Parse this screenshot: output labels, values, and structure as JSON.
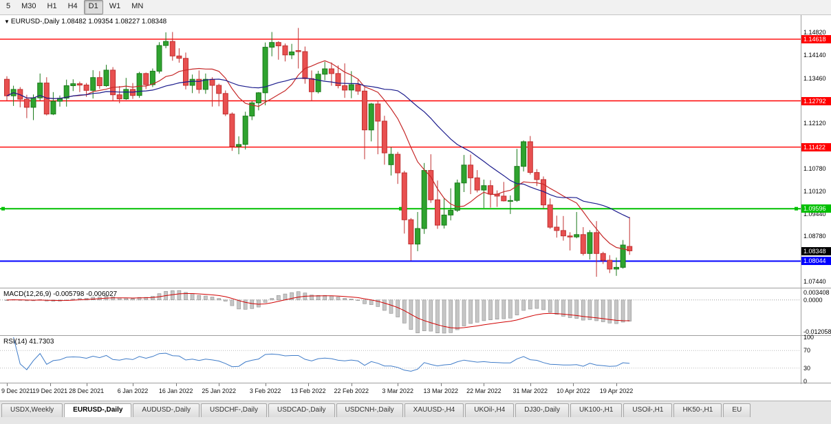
{
  "toolbar": {
    "timeframes": [
      {
        "label": "5",
        "active": false
      },
      {
        "label": "M30",
        "active": false
      },
      {
        "label": "H1",
        "active": false
      },
      {
        "label": "H4",
        "active": false
      },
      {
        "label": "D1",
        "active": true
      },
      {
        "label": "W1",
        "active": false
      },
      {
        "label": "MN",
        "active": false
      }
    ]
  },
  "chart_title": {
    "icon": "▼",
    "symbol": "EURUSD-,Daily",
    "ohlc": "1.08482 1.09354 1.08227 1.08348"
  },
  "chart_data": {
    "type": "candlestick",
    "symbol": "EURUSD-",
    "timeframe": "Daily",
    "colors": {
      "bull_fill": "#2FA32F",
      "bull_border": "#1B7A1B",
      "bear_fill": "#E85050",
      "bear_border": "#C03030"
    },
    "y_axis": {
      "top_price": 1.1482,
      "bottom_price": 1.0744,
      "labels": [
        {
          "text": "1.14820",
          "price": 1.1482
        },
        {
          "text": "1.14140",
          "price": 1.1414
        },
        {
          "text": "1.13460",
          "price": 1.1346
        },
        {
          "text": "1.12120",
          "price": 1.1212
        },
        {
          "text": "1.10780",
          "price": 1.1078
        },
        {
          "text": "1.10120",
          "price": 1.1012
        },
        {
          "text": "1.09440",
          "price": 1.0944
        },
        {
          "text": "1.08780",
          "price": 1.0878
        },
        {
          "text": "1.07440",
          "price": 1.0744
        }
      ]
    },
    "levels": [
      {
        "price": 1.14618,
        "label": "1.14618",
        "color": "#FF0000",
        "width": 1.4,
        "selected": false
      },
      {
        "price": 1.12792,
        "label": "1.12792",
        "color": "#FF0000",
        "width": 1.4,
        "selected": false
      },
      {
        "price": 1.11422,
        "label": "1.11422",
        "color": "#FF0000",
        "width": 1.4,
        "selected": false
      },
      {
        "price": 1.09596,
        "label": "1.09596",
        "color": "#00C000",
        "width": 2,
        "selected": true
      },
      {
        "price": 1.08044,
        "label": "1.08044",
        "color": "#0000FF",
        "width": 2,
        "selected": false
      }
    ],
    "current_price": {
      "price": 1.08348,
      "label": "1.08348",
      "color": "#000000"
    },
    "moving_averages": [
      {
        "period": 10,
        "color": "#C62828"
      },
      {
        "period": 24,
        "color": "#1A1A8C"
      }
    ],
    "x_axis_labels": [
      {
        "text": "9 Dec 2021",
        "i": 0
      },
      {
        "text": "19 Dec 2021",
        "i": 6.5
      },
      {
        "text": "28 Dec 2021",
        "i": 12
      },
      {
        "text": "6 Jan 2022",
        "i": 19
      },
      {
        "text": "16 Jan 2022",
        "i": 25.5
      },
      {
        "text": "25 Jan 2022",
        "i": 32
      },
      {
        "text": "3 Feb 2022",
        "i": 39
      },
      {
        "text": "13 Feb 2022",
        "i": 45.5
      },
      {
        "text": "22 Feb 2022",
        "i": 52
      },
      {
        "text": "3 Mar 2022",
        "i": 59
      },
      {
        "text": "13 Mar 2022",
        "i": 65.5
      },
      {
        "text": "22 Mar 2022",
        "i": 72
      },
      {
        "text": "31 Mar 2022",
        "i": 79
      },
      {
        "text": "10 Apr 2022",
        "i": 85.5
      },
      {
        "text": "19 Apr 2022",
        "i": 92
      }
    ],
    "ohlc": [
      [
        1.1343,
        1.1352,
        1.128,
        1.1294
      ],
      [
        1.1294,
        1.1324,
        1.1264,
        1.1313
      ],
      [
        1.1313,
        1.132,
        1.126,
        1.1284
      ],
      [
        1.1284,
        1.1297,
        1.1228,
        1.126
      ],
      [
        1.126,
        1.1298,
        1.1222,
        1.1288
      ],
      [
        1.1288,
        1.136,
        1.128,
        1.1332
      ],
      [
        1.1332,
        1.1349,
        1.1236,
        1.124
      ],
      [
        1.124,
        1.1305,
        1.1237,
        1.1278
      ],
      [
        1.1278,
        1.1295,
        1.1262,
        1.1287
      ],
      [
        1.1287,
        1.1342,
        1.1262,
        1.1324
      ],
      [
        1.1324,
        1.1343,
        1.1308,
        1.133
      ],
      [
        1.133,
        1.1336,
        1.1305,
        1.1326
      ],
      [
        1.1326,
        1.1332,
        1.1291,
        1.131
      ],
      [
        1.131,
        1.137,
        1.1286,
        1.1348
      ],
      [
        1.1348,
        1.1367,
        1.1315,
        1.1324
      ],
      [
        1.1324,
        1.1386,
        1.1321,
        1.137
      ],
      [
        1.137,
        1.1379,
        1.1279,
        1.1297
      ],
      [
        1.1297,
        1.1323,
        1.1272,
        1.1285
      ],
      [
        1.1285,
        1.1347,
        1.1282,
        1.1313
      ],
      [
        1.1313,
        1.1332,
        1.1285,
        1.1295
      ],
      [
        1.1295,
        1.1365,
        1.1288,
        1.136
      ],
      [
        1.136,
        1.1363,
        1.1314,
        1.1327
      ],
      [
        1.1327,
        1.1375,
        1.132,
        1.1367
      ],
      [
        1.1367,
        1.1453,
        1.136,
        1.1443
      ],
      [
        1.1443,
        1.1482,
        1.1435,
        1.1455
      ],
      [
        1.1455,
        1.1483,
        1.1398,
        1.1412
      ],
      [
        1.1412,
        1.1435,
        1.1392,
        1.1405
      ],
      [
        1.1405,
        1.1422,
        1.1313,
        1.1325
      ],
      [
        1.1325,
        1.1357,
        1.1302,
        1.1343
      ],
      [
        1.1343,
        1.1369,
        1.1301,
        1.1313
      ],
      [
        1.1313,
        1.136,
        1.13,
        1.1343
      ],
      [
        1.1343,
        1.1349,
        1.1262,
        1.1325
      ],
      [
        1.1325,
        1.133,
        1.1263,
        1.1301
      ],
      [
        1.1301,
        1.131,
        1.1234,
        1.124
      ],
      [
        1.124,
        1.1245,
        1.1131,
        1.1144
      ],
      [
        1.1144,
        1.1174,
        1.1121,
        1.115
      ],
      [
        1.115,
        1.1247,
        1.1135,
        1.1234
      ],
      [
        1.1234,
        1.1279,
        1.1222,
        1.1273
      ],
      [
        1.1273,
        1.1305,
        1.1251,
        1.1303
      ],
      [
        1.1303,
        1.1452,
        1.1266,
        1.1438
      ],
      [
        1.1438,
        1.1483,
        1.1411,
        1.1452
      ],
      [
        1.1452,
        1.1456,
        1.1401,
        1.1442
      ],
      [
        1.1442,
        1.1449,
        1.1396,
        1.1415
      ],
      [
        1.1415,
        1.1448,
        1.1403,
        1.1424
      ],
      [
        1.1428,
        1.1495,
        1.1375,
        1.1425
      ],
      [
        1.1425,
        1.144,
        1.133,
        1.1345
      ],
      [
        1.1345,
        1.1369,
        1.1278,
        1.1306
      ],
      [
        1.1306,
        1.1368,
        1.1301,
        1.1358
      ],
      [
        1.1358,
        1.1395,
        1.134,
        1.1374
      ],
      [
        1.1374,
        1.1393,
        1.1324,
        1.136
      ],
      [
        1.136,
        1.1384,
        1.1316,
        1.1324
      ],
      [
        1.1324,
        1.139,
        1.1288,
        1.1311
      ],
      [
        1.1311,
        1.1367,
        1.1287,
        1.1327
      ],
      [
        1.1327,
        1.1342,
        1.1297,
        1.1308
      ],
      [
        1.1308,
        1.1318,
        1.1106,
        1.1193
      ],
      [
        1.1193,
        1.1273,
        1.1159,
        1.127
      ],
      [
        1.127,
        1.1278,
        1.1121,
        1.1219
      ],
      [
        1.1219,
        1.1235,
        1.109,
        1.1125
      ],
      [
        1.109,
        1.1142,
        1.1058,
        1.1121
      ],
      [
        1.1121,
        1.1128,
        1.1033,
        1.1066
      ],
      [
        1.1066,
        1.1072,
        1.0886,
        1.0927
      ],
      [
        1.0927,
        1.0932,
        1.0806,
        1.0855
      ],
      [
        1.0855,
        1.095,
        1.0834,
        1.0901
      ],
      [
        1.0901,
        1.1095,
        1.0885,
        1.1073
      ],
      [
        1.1073,
        1.1121,
        1.0977,
        1.0986
      ],
      [
        1.0986,
        1.1043,
        1.09,
        1.0911
      ],
      [
        1.0911,
        1.0991,
        1.0901,
        1.0941
      ],
      [
        1.0941,
        1.102,
        1.0925,
        1.0955
      ],
      [
        1.0955,
        1.1046,
        1.095,
        1.1036
      ],
      [
        1.1036,
        1.1119,
        1.1009,
        1.1089
      ],
      [
        1.1089,
        1.112,
        1.1003,
        1.1051
      ],
      [
        1.1051,
        1.1074,
        1.1008,
        1.1015
      ],
      [
        1.1015,
        1.1046,
        1.0962,
        1.1028
      ],
      [
        1.1028,
        1.1044,
        1.0963,
        1.1003
      ],
      [
        1.1003,
        1.1014,
        1.0965,
        1.0997
      ],
      [
        1.0997,
        1.1039,
        1.0981,
        1.0983
      ],
      [
        1.0983,
        1.0999,
        1.0944,
        1.0984
      ],
      [
        1.0984,
        1.1137,
        1.098,
        1.1085
      ],
      [
        1.1085,
        1.1162,
        1.107,
        1.1158
      ],
      [
        1.1158,
        1.1175,
        1.1061,
        1.1067
      ],
      [
        1.1067,
        1.1077,
        1.1027,
        1.1046
      ],
      [
        1.1046,
        1.1055,
        1.096,
        1.0971
      ],
      [
        1.0971,
        1.099,
        1.09,
        1.0905
      ],
      [
        1.0905,
        1.0939,
        1.0874,
        1.0895
      ],
      [
        1.0895,
        1.0938,
        1.0865,
        1.0879
      ],
      [
        1.0879,
        1.089,
        1.0836,
        1.0876
      ],
      [
        1.0876,
        1.095,
        1.0872,
        1.0883
      ],
      [
        1.0883,
        1.0905,
        1.0821,
        1.0827
      ],
      [
        1.0827,
        1.0896,
        1.0809,
        1.0889
      ],
      [
        1.0889,
        1.0923,
        1.0758,
        1.0827
      ],
      [
        1.0827,
        1.0832,
        1.0796,
        1.0807
      ],
      [
        1.0807,
        1.0822,
        1.0769,
        1.0781
      ],
      [
        1.0781,
        1.0815,
        1.0761,
        1.0786
      ],
      [
        1.0786,
        1.0867,
        1.0782,
        1.0852
      ],
      [
        1.0848,
        1.0935,
        1.0823,
        1.0835
      ]
    ]
  },
  "indicators": {
    "macd": {
      "label": "MACD(12,26,9)",
      "value_main": "-0.005798",
      "value_signal": "-0.006027",
      "fast": 12,
      "slow": 26,
      "signal": 9,
      "axis_max": "0.003408",
      "axis_zero": "0.0000",
      "axis_min": "-0.012058",
      "bar_color": "#C6C6C6",
      "bar_border": "#8F8F8F",
      "line_color": "#D00000"
    },
    "rsi": {
      "label": "RSI(14)",
      "value": "41.7303",
      "period": 14,
      "overbought": 70,
      "oversold": 30,
      "axis": [
        "100",
        "70",
        "30",
        "0"
      ],
      "line_color": "#3E7BC8"
    }
  },
  "tabs": [
    {
      "label": "USDX,Weekly",
      "active": false
    },
    {
      "label": "EURUSD-,Daily",
      "active": true
    },
    {
      "label": "AUDUSD-,Daily",
      "active": false
    },
    {
      "label": "USDCHF-,Daily",
      "active": false
    },
    {
      "label": "USDCAD-,Daily",
      "active": false
    },
    {
      "label": "USDCNH-,Daily",
      "active": false
    },
    {
      "label": "XAUUSD-,H4",
      "active": false
    },
    {
      "label": "UKOil-,H4",
      "active": false
    },
    {
      "label": "DJ30-,Daily",
      "active": false
    },
    {
      "label": "UK100-,H1",
      "active": false
    },
    {
      "label": "USOil-,H1",
      "active": false
    },
    {
      "label": "HK50-,H1",
      "active": false
    },
    {
      "label": "EU",
      "active": false
    }
  ]
}
